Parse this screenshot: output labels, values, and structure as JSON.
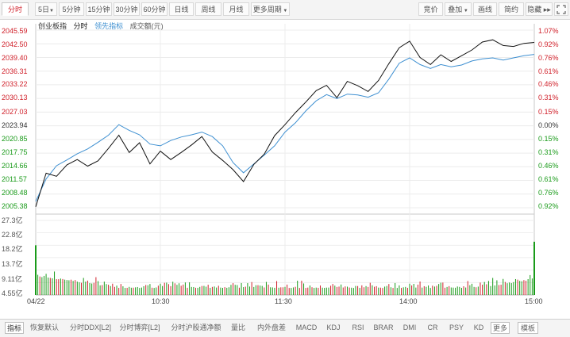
{
  "period_tabs": [
    "分时",
    "5日",
    "5分钟",
    "15分钟",
    "30分钟",
    "60分钟",
    "日线",
    "周线",
    "月线",
    "更多周期"
  ],
  "toolbar": {
    "bid": "竞价",
    "overlay": "叠加",
    "draw": "画线",
    "simple": "简约",
    "hide": "隐藏"
  },
  "legend": {
    "index": "创业板指",
    "timeshare": "分时",
    "leading": "领先指标",
    "turnover": "成交额(元)"
  },
  "colors": {
    "up": "#d0202a",
    "down": "#1a9b1a",
    "price": "#111111",
    "leading": "#3d8fd1"
  },
  "chart_data": {
    "type": "line",
    "price_axis": {
      "left_labels": [
        "2045.59",
        "2042.50",
        "2039.40",
        "2036.31",
        "2033.22",
        "2030.13",
        "2027.03",
        "2023.94",
        "2020.85",
        "2017.75",
        "2014.66",
        "2011.57",
        "2008.48",
        "2005.38"
      ],
      "right_labels": [
        "1.07%",
        "0.92%",
        "0.76%",
        "0.61%",
        "0.46%",
        "0.31%",
        "0.15%",
        "0.00%",
        "0.15%",
        "0.31%",
        "0.46%",
        "0.61%",
        "0.76%",
        "0.92%"
      ],
      "ylim": [
        2005.38,
        2045.59
      ],
      "prev_close": 2023.94
    },
    "volume_axis": {
      "labels": [
        "27.3亿",
        "22.8亿",
        "18.2亿",
        "13.7亿",
        "9.11亿",
        "4.55亿"
      ],
      "ylim": [
        0,
        27.3
      ]
    },
    "x_ticks": [
      "04/22",
      "10:30",
      "11:30",
      "14:00",
      "15:00"
    ],
    "time_range": [
      "09:30",
      "15:00"
    ],
    "series": [
      {
        "name": "分时",
        "x": [
          "09:30",
          "09:35",
          "09:40",
          "09:45",
          "09:50",
          "09:55",
          "10:00",
          "10:05",
          "10:10",
          "10:15",
          "10:20",
          "10:25",
          "10:30",
          "10:35",
          "10:40",
          "10:45",
          "10:50",
          "10:55",
          "11:00",
          "11:05",
          "11:10",
          "11:15",
          "11:20",
          "11:25",
          "11:30",
          "13:05",
          "13:10",
          "13:15",
          "13:20",
          "13:25",
          "13:30",
          "13:35",
          "13:40",
          "13:45",
          "13:50",
          "13:55",
          "14:00",
          "14:05",
          "14:10",
          "14:15",
          "14:20",
          "14:25",
          "14:30",
          "14:35",
          "14:40",
          "14:45",
          "14:50",
          "14:55",
          "15:00"
        ],
        "values": [
          2005.6,
          2013.2,
          2012.5,
          2015.1,
          2016.3,
          2014.8,
          2016.0,
          2018.8,
          2021.8,
          2017.9,
          2020.1,
          2015.3,
          2018.2,
          2016.3,
          2017.9,
          2019.6,
          2021.5,
          2018.0,
          2016.1,
          2014.0,
          2011.3,
          2015.2,
          2017.5,
          2021.7,
          2024.2,
          2026.9,
          2029.3,
          2031.9,
          2033.1,
          2030.3,
          2034.0,
          2033.0,
          2031.7,
          2034.2,
          2038.0,
          2041.6,
          2043.1,
          2039.4,
          2037.8,
          2040.0,
          2038.5,
          2039.8,
          2041.1,
          2042.9,
          2043.4,
          2042.1,
          2041.9,
          2042.6,
          2042.8
        ]
      },
      {
        "name": "领先指标",
        "x": [
          "09:30",
          "09:35",
          "09:40",
          "09:45",
          "09:50",
          "09:55",
          "10:00",
          "10:05",
          "10:10",
          "10:15",
          "10:20",
          "10:25",
          "10:30",
          "10:35",
          "10:40",
          "10:45",
          "10:50",
          "10:55",
          "11:00",
          "11:05",
          "11:10",
          "11:15",
          "11:20",
          "11:25",
          "11:30",
          "13:05",
          "13:10",
          "13:15",
          "13:20",
          "13:25",
          "13:30",
          "13:35",
          "13:40",
          "13:45",
          "13:50",
          "13:55",
          "14:00",
          "14:05",
          "14:10",
          "14:15",
          "14:20",
          "14:25",
          "14:30",
          "14:35",
          "14:40",
          "14:45",
          "14:50",
          "14:55",
          "15:00"
        ],
        "values": [
          2006.8,
          2011.9,
          2014.9,
          2016.2,
          2017.6,
          2018.7,
          2020.2,
          2021.8,
          2024.2,
          2022.9,
          2021.9,
          2019.8,
          2019.4,
          2020.6,
          2021.4,
          2021.9,
          2022.5,
          2021.5,
          2019.4,
          2015.6,
          2013.3,
          2015.3,
          2017.3,
          2019.4,
          2022.5,
          2024.6,
          2027.3,
          2029.6,
          2031.0,
          2030.1,
          2031.1,
          2030.9,
          2030.4,
          2031.4,
          2034.5,
          2038.1,
          2039.3,
          2037.8,
          2036.9,
          2037.8,
          2037.3,
          2037.7,
          2038.6,
          2039.1,
          2039.3,
          2038.8,
          2039.3,
          2039.8,
          2040.1
        ]
      }
    ],
    "volume": {
      "unit": "亿",
      "open": 18.2,
      "close": 19.5,
      "typical_range": [
        1.5,
        10.5
      ]
    }
  },
  "indicator_tabs": [
    "指标",
    "恢复默认",
    "分时DDX[L2]",
    "分时博弈[L2]",
    "分时沪股通净额",
    "量比",
    "内外盘差",
    "MACD",
    "KDJ",
    "RSI",
    "BRAR",
    "DMI",
    "CR",
    "PSY",
    "KD",
    "更多",
    "模板"
  ]
}
